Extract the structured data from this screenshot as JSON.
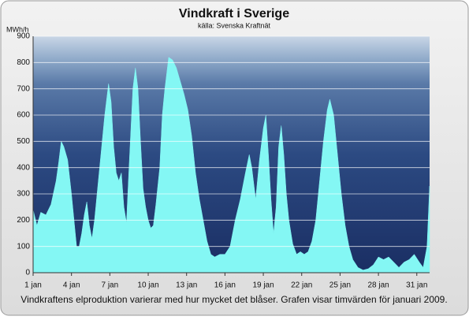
{
  "chart_data": {
    "type": "area",
    "title": "Vindkraft i Sverige",
    "subtitle": "källa: Svenska Kraftnät",
    "y_label": "MWh/h",
    "caption": "Vindkraftens elproduktion varierar med hur mycket det blåser. Grafen visar timvärden för januari 2009.",
    "color": "#84f7f4",
    "grid": true,
    "xlim": [
      1,
      32
    ],
    "ylim": [
      0,
      900
    ],
    "yticks": [
      0,
      100,
      200,
      300,
      400,
      500,
      600,
      700,
      800,
      900
    ],
    "xticks": [
      {
        "value": 1,
        "label": "1 jan"
      },
      {
        "value": 4,
        "label": "4 jan"
      },
      {
        "value": 7,
        "label": "7 jan"
      },
      {
        "value": 10,
        "label": "10 jan"
      },
      {
        "value": 13,
        "label": "13 jan"
      },
      {
        "value": 16,
        "label": "16 jan"
      },
      {
        "value": 19,
        "label": "19 jan"
      },
      {
        "value": 22,
        "label": "22 jan"
      },
      {
        "value": 25,
        "label": "25 jan"
      },
      {
        "value": 28,
        "label": "28 jan"
      },
      {
        "value": 31,
        "label": "31 jan"
      }
    ],
    "x": [
      1.0,
      1.3,
      1.6,
      2.0,
      2.4,
      2.8,
      3.0,
      3.2,
      3.4,
      3.7,
      4.0,
      4.2,
      4.4,
      4.6,
      4.8,
      5.0,
      5.2,
      5.4,
      5.6,
      5.8,
      6.0,
      6.3,
      6.6,
      6.9,
      7.1,
      7.3,
      7.5,
      7.7,
      7.9,
      8.1,
      8.3,
      8.5,
      8.8,
      9.0,
      9.2,
      9.4,
      9.6,
      9.8,
      10.0,
      10.2,
      10.4,
      10.6,
      10.9,
      11.1,
      11.3,
      11.6,
      11.9,
      12.2,
      12.5,
      12.8,
      13.1,
      13.4,
      13.7,
      14.0,
      14.3,
      14.6,
      14.9,
      15.2,
      15.6,
      16.0,
      16.4,
      16.8,
      17.2,
      17.6,
      17.9,
      18.1,
      18.4,
      18.7,
      19.0,
      19.2,
      19.4,
      19.6,
      19.8,
      20.0,
      20.2,
      20.4,
      20.6,
      20.8,
      21.0,
      21.3,
      21.6,
      21.9,
      22.2,
      22.5,
      22.8,
      23.1,
      23.4,
      23.7,
      24.0,
      24.2,
      24.5,
      24.8,
      25.1,
      25.4,
      25.7,
      26.0,
      26.4,
      26.8,
      27.2,
      27.6,
      28.0,
      28.4,
      28.8,
      29.2,
      29.6,
      30.0,
      30.4,
      30.8,
      31.2,
      31.5,
      31.8,
      32.0
    ],
    "values": [
      240,
      180,
      230,
      220,
      260,
      350,
      420,
      500,
      480,
      430,
      300,
      200,
      100,
      100,
      150,
      220,
      270,
      180,
      130,
      200,
      300,
      450,
      600,
      720,
      650,
      480,
      380,
      350,
      380,
      250,
      190,
      400,
      700,
      780,
      700,
      500,
      320,
      250,
      200,
      170,
      180,
      260,
      400,
      600,
      700,
      820,
      810,
      780,
      730,
      680,
      620,
      520,
      380,
      280,
      200,
      120,
      70,
      60,
      70,
      70,
      100,
      200,
      280,
      380,
      450,
      400,
      280,
      430,
      550,
      600,
      450,
      280,
      150,
      250,
      480,
      560,
      450,
      300,
      200,
      110,
      70,
      80,
      70,
      80,
      120,
      200,
      350,
      500,
      620,
      660,
      600,
      450,
      300,
      180,
      100,
      50,
      20,
      10,
      15,
      30,
      60,
      50,
      60,
      40,
      20,
      40,
      50,
      70,
      40,
      20,
      100,
      330
    ]
  }
}
